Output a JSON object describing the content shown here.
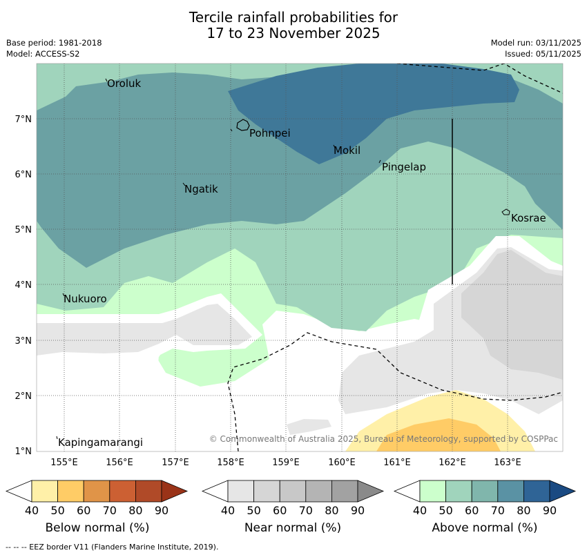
{
  "title_line1": "Tercile rainfall probabilities for",
  "title_line2": "17 to 23 November 2025",
  "base_period": "Base period: 1981-2018",
  "model": "Model: ACCESS-S2",
  "model_run": "Model run: 03/11/2025",
  "issued": "Issued: 05/11/2025",
  "copyright": "© Commonwealth of Australia 2025, Bureau of Meteorology, supported by COSPPac",
  "lon_ticks": [
    "155°E",
    "156°E",
    "157°E",
    "158°E",
    "159°E",
    "160°E",
    "161°E",
    "162°E",
    "163°E"
  ],
  "lat_ticks": [
    "7°N",
    "6°N",
    "5°N",
    "4°N",
    "3°N",
    "2°N",
    "1°N"
  ],
  "places": [
    "Oroluk",
    "Pohnpei",
    "Mokil",
    "Pingelap",
    "Ngatik",
    "Kosrae",
    "Nukuoro",
    "Kapingamarangi"
  ],
  "colorbars": {
    "below": {
      "label": "Below normal (%)",
      "ticks": [
        "40",
        "50",
        "60",
        "70",
        "80",
        "90"
      ],
      "colors": [
        "#fff0a8",
        "#ffcc66",
        "#e09448",
        "#cc6033",
        "#b04a28",
        "#9a3318"
      ]
    },
    "near": {
      "label": "Near normal (%)",
      "ticks": [
        "40",
        "50",
        "60",
        "70",
        "80",
        "90"
      ],
      "colors": [
        "#e6e6e6",
        "#d6d6d6",
        "#c8c8c8",
        "#b4b4b4",
        "#a2a2a2",
        "#8a8a8a"
      ]
    },
    "above": {
      "label": "Above normal (%)",
      "ticks": [
        "40",
        "50",
        "60",
        "70",
        "80",
        "90"
      ],
      "colors": [
        "#ccffcc",
        "#a0d4bc",
        "#80b6ac",
        "#5a92a4",
        "#2f6496",
        "#1a4a82"
      ]
    }
  },
  "footer": "--  --  -- EEZ border V11 (Flanders Marine Institute, 2019)."
}
